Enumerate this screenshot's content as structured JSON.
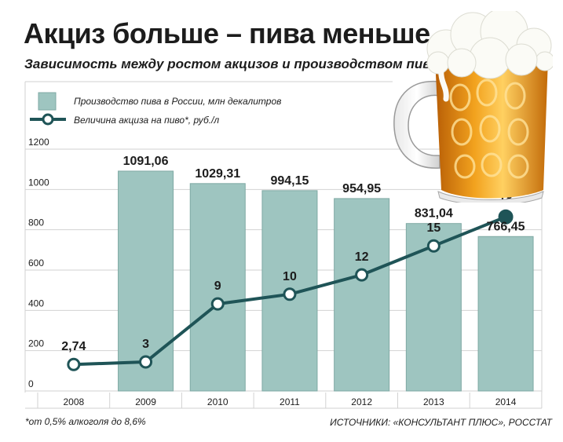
{
  "chart_data": {
    "type": "bar",
    "title": "Акциз больше – пива меньше",
    "subtitle": "Зависимость между ростом акцизов и производством пива",
    "categories": [
      "2008",
      "2009",
      "2010",
      "2011",
      "2012",
      "2013",
      "2014"
    ],
    "series": [
      {
        "name": "Производство пива в России, млн декалитров",
        "type": "bar",
        "values": [
          null,
          1091.06,
          1029.31,
          994.15,
          954.95,
          831.04,
          766.45
        ],
        "labels": [
          "",
          "1091,06",
          "1029,31",
          "994,15",
          "954,95",
          "831,04",
          "766,45"
        ],
        "color": "#9ec5c0"
      },
      {
        "name": "Величина акциза на пиво*, руб./л",
        "type": "line",
        "values": [
          2.74,
          3,
          9,
          10,
          12,
          15,
          18
        ],
        "labels": [
          "2,74",
          "3",
          "9",
          "10",
          "12",
          "15",
          "18"
        ],
        "color": "#1f5457"
      }
    ],
    "yticks": [
      "0",
      "200",
      "400",
      "600",
      "800",
      "1000",
      "1200"
    ],
    "ylim": [
      0,
      1200
    ],
    "line_range": [
      0,
      25
    ],
    "grid": true,
    "legend": "top-left"
  },
  "footnote": "*от 0,5% алкоголя до 8,6%",
  "source": "ИСТОЧНИКИ: «КОНСУЛЬТАНТ ПЛЮС», РОССТАТ",
  "colors": {
    "bar": "#9ec5c0",
    "line": "#1f5457",
    "grid": "#d2d2d2",
    "text": "#1c1c1c"
  },
  "decoration": "beer-mug-icon"
}
